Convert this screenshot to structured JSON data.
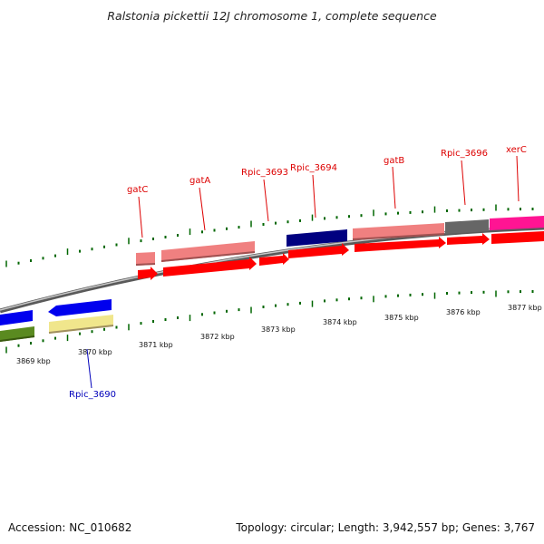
{
  "title": "Ralstonia pickettii 12J chromosome 1, complete sequence",
  "footer": {
    "accession": "Accession: NC_010682",
    "summary": "Topology: circular; Length: 3,942,557 bp; Genes: 3,767"
  },
  "colors": {
    "label_red": "#dd0000",
    "label_blue": "#0000bb",
    "tick_green": "#006600",
    "backbone": "#8a8a8a",
    "cds_red": "#ff0000",
    "cds_pink": "#f08080",
    "cds_navy": "#000080",
    "cds_gray": "#666666",
    "cds_magenta": "#ff1493",
    "cds_blue": "#0000ee",
    "cds_olive": "#5a8a20",
    "cds_khaki": "#f0e68c"
  },
  "kbp_labels": [
    "3869 kbp",
    "3870 kbp",
    "3871 kbp",
    "3872 kbp",
    "3873 kbp",
    "3874 kbp",
    "3875 kbp",
    "3876 kbp",
    "3877 kbp"
  ],
  "gene_labels": [
    "gatC",
    "gatA",
    "Rpic_3693",
    "Rpic_3694",
    "gatB",
    "Rpic_3696",
    "xerC",
    "Rpic_3690"
  ]
}
